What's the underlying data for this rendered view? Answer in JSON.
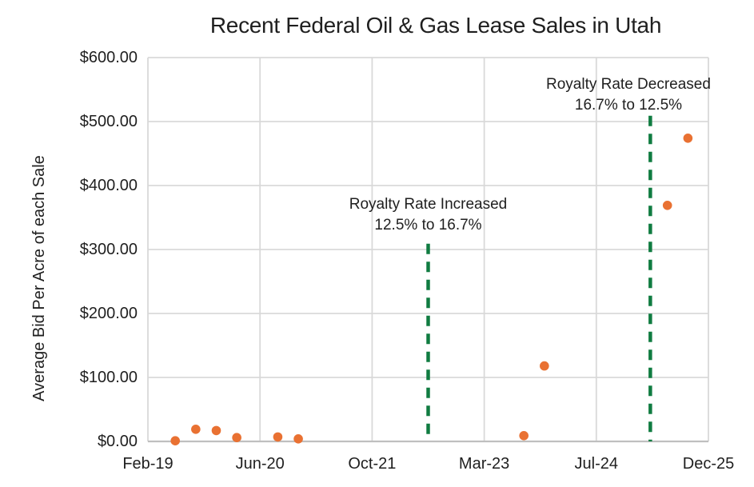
{
  "chart": {
    "colors": {
      "point": "#E97132",
      "vline": "#107C41",
      "gridline": "#D9D9D9",
      "axis_line": "#BFBFBF",
      "text": "#1f1f1f",
      "background": "#ffffff"
    }
  },
  "chart_data": {
    "type": "scatter",
    "title": "Recent Federal Oil & Gas Lease Sales in Utah",
    "xlabel": "",
    "ylabel": "Average Bid Per Acre of each Sale",
    "grid": true,
    "legend": null,
    "ylim": [
      0,
      600
    ],
    "y_ticks": [
      {
        "value": 0,
        "label": "$0.00"
      },
      {
        "value": 100,
        "label": "$100.00"
      },
      {
        "value": 200,
        "label": "$200.00"
      },
      {
        "value": 300,
        "label": "$300.00"
      },
      {
        "value": 400,
        "label": "$400.00"
      },
      {
        "value": 500,
        "label": "$500.00"
      },
      {
        "value": 600,
        "label": "$600.00"
      }
    ],
    "x_axis": {
      "unit": "months-since-Feb-2019",
      "range_months": [
        0,
        82
      ],
      "tick_labels": [
        "Feb-19",
        "Jun-20",
        "Oct-21",
        "Mar-23",
        "Jul-24",
        "Dec-25"
      ]
    },
    "points": [
      {
        "date": "Jun-19",
        "months": 4,
        "value": 1
      },
      {
        "date": "Sep-19",
        "months": 7,
        "value": 19
      },
      {
        "date": "Dec-19",
        "months": 10,
        "value": 17
      },
      {
        "date": "Mar-20",
        "months": 13,
        "value": 6
      },
      {
        "date": "Sep-20",
        "months": 19,
        "value": 7
      },
      {
        "date": "Dec-20",
        "months": 22,
        "value": 4
      },
      {
        "date": "Sep-23",
        "months": 55,
        "value": 9
      },
      {
        "date": "Dec-23",
        "months": 58,
        "value": 118
      },
      {
        "date": "Jun-25",
        "months": 76,
        "value": 369
      },
      {
        "date": "Sep-25",
        "months": 79,
        "value": 474
      }
    ],
    "vlines": [
      {
        "months": 41,
        "top_value": 309,
        "label_line1": "Royalty Rate Increased",
        "label_line2": "12.5% to 16.7%",
        "label_center_months": 41,
        "label_top_value": 386
      },
      {
        "months": 73.5,
        "top_value": 509,
        "label_line1": "Royalty Rate Decreased",
        "label_line2": "16.7% to 12.5%",
        "label_center_months": 70.3,
        "label_top_value": 574
      }
    ]
  }
}
